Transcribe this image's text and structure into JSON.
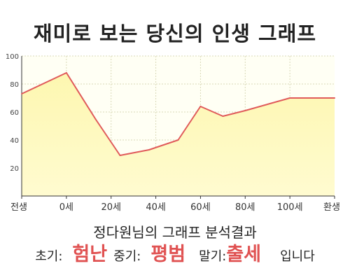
{
  "header": {
    "title": "재미로 보는 당신의 인생 그래프"
  },
  "colors": {
    "line": "#e05a5a",
    "area_top": "#fdf7b0",
    "area_bottom": "#fffbd0",
    "plot_bg": "#fffff4",
    "grid": "#d9d9b8",
    "accent": "#e05252"
  },
  "chart_data": {
    "type": "area",
    "title": "재미로 보는 당신의 인생 그래프",
    "xlabel": "",
    "ylabel": "",
    "categories": [
      "전생",
      "0세",
      "20세",
      "40세",
      "60세",
      "80세",
      "100세",
      "환생"
    ],
    "x_axis_note": "x values are positions on the ordered axis: 0 = 전생, 1 = 0세 ... 7 = 환생",
    "ylim": [
      0,
      100
    ],
    "y_ticks": [
      20,
      40,
      60,
      80,
      100
    ],
    "grid": true,
    "legend": "none",
    "series": [
      {
        "points": [
          {
            "x": 0,
            "y": 73
          },
          {
            "x": 1,
            "y": 88
          },
          {
            "x": 1.65,
            "y": 55
          },
          {
            "x": 2.2,
            "y": 29
          },
          {
            "x": 2.85,
            "y": 33
          },
          {
            "x": 3.5,
            "y": 40
          },
          {
            "x": 4,
            "y": 64
          },
          {
            "x": 4.5,
            "y": 57
          },
          {
            "x": 5,
            "y": 61
          },
          {
            "x": 6,
            "y": 70
          },
          {
            "x": 7,
            "y": 70
          }
        ]
      }
    ]
  },
  "result": {
    "heading": "정다원님의 그래프 분석결과",
    "early_label": "초기:",
    "early_value": "험난",
    "middle_label": "중기:",
    "middle_value": "평범",
    "late_label": "말기:",
    "late_value": "출세",
    "ending": "입니다"
  }
}
